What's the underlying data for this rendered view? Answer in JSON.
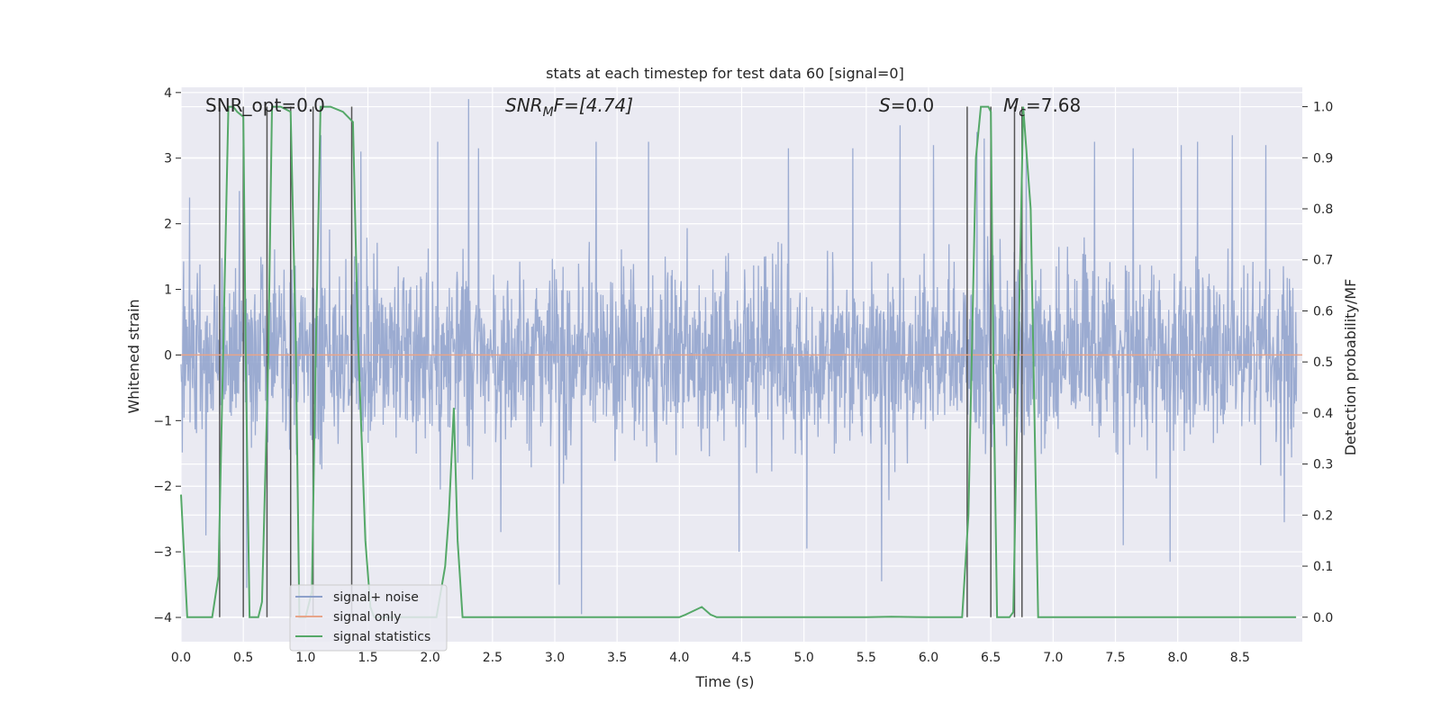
{
  "chart_data": {
    "type": "line",
    "title": "stats at each timestep for test data 60 [signal=0]",
    "xlabel": "Time (s)",
    "ylabel_left": "Whitened strain",
    "ylabel_right": "Detection probability/MF",
    "xlim": [
      0.0,
      9.0
    ],
    "ylim_left": [
      -4.37,
      4.08
    ],
    "ylim_right": [
      -0.048,
      1.038
    ],
    "x_ticks": [
      0.0,
      0.5,
      1.0,
      1.5,
      2.0,
      2.5,
      3.0,
      3.5,
      4.0,
      4.5,
      5.0,
      5.5,
      6.0,
      6.5,
      7.0,
      7.5,
      8.0,
      8.5
    ],
    "x_tick_labels": [
      "0.0",
      "0.5",
      "1.0",
      "1.5",
      "2.0",
      "2.5",
      "3.0",
      "3.5",
      "4.0",
      "4.5",
      "5.0",
      "5.5",
      "6.0",
      "6.5",
      "7.0",
      "7.5",
      "8.0",
      "8.5"
    ],
    "y_left_ticks": [
      4,
      3,
      2,
      1,
      0,
      -1,
      -2,
      -3,
      -4
    ],
    "y_left_tick_labels": [
      "4",
      "3",
      "2",
      "1",
      "0",
      "−1",
      "−2",
      "−3",
      "−4"
    ],
    "y_right_ticks": [
      1.0,
      0.9,
      0.8,
      0.7,
      0.6,
      0.5,
      0.4,
      0.3,
      0.2,
      0.1,
      0.0
    ],
    "y_right_tick_labels": [
      "1.0",
      "0.9",
      "0.8",
      "0.7",
      "0.6",
      "0.5",
      "0.4",
      "0.3",
      "0.2",
      "0.1",
      "0.0"
    ],
    "grid": true,
    "annotations": {
      "snr_opt": "SNR_opt=0.0",
      "snr_mf_main": "SNR",
      "snr_mf_sub": "M",
      "snr_mf_rest": "F=[4.74]",
      "s_main": "S",
      "s_rest": "=0.0",
      "mc_main": "M",
      "mc_sub": "c",
      "mc_rest": "=7.68"
    },
    "series": [
      {
        "name": "signal+ noise",
        "axis": "left",
        "color": "#8da0cb",
        "description_values": "whitened noise, roughly within [-2.6, 2.6] with peaks to ~3.8 and -4.0",
        "peaks": [
          [
            0.07,
            2.4
          ],
          [
            0.2,
            -2.75
          ],
          [
            0.47,
            2.5
          ],
          [
            0.53,
            -3.55
          ],
          [
            1.13,
            3.35
          ],
          [
            1.45,
            3.1
          ],
          [
            2.07,
            3.25
          ],
          [
            2.09,
            -2.05
          ],
          [
            2.32,
            3.9
          ],
          [
            2.4,
            3.15
          ],
          [
            2.58,
            -2.7
          ],
          [
            3.05,
            -3.5
          ],
          [
            3.23,
            -3.95
          ],
          [
            3.35,
            3.25
          ],
          [
            3.77,
            3.25
          ],
          [
            4.5,
            -3.0
          ],
          [
            4.9,
            3.15
          ],
          [
            5.05,
            -2.95
          ],
          [
            5.42,
            3.15
          ],
          [
            5.65,
            -3.45
          ],
          [
            5.8,
            3.5
          ],
          [
            6.07,
            3.2
          ],
          [
            6.42,
            3.4
          ],
          [
            6.48,
            3.3
          ],
          [
            6.82,
            3.1
          ],
          [
            7.37,
            3.25
          ],
          [
            7.6,
            -2.9
          ],
          [
            7.68,
            3.15
          ],
          [
            7.98,
            -3.15
          ],
          [
            8.07,
            3.2
          ],
          [
            8.2,
            3.25
          ],
          [
            8.48,
            3.35
          ],
          [
            8.75,
            3.2
          ],
          [
            8.9,
            -2.55
          ]
        ]
      },
      {
        "name": "signal only",
        "axis": "left",
        "color": "#e8a58a",
        "x": [
          0.0,
          9.0
        ],
        "y": [
          0.0,
          0.0
        ]
      },
      {
        "name": "signal statistics",
        "axis": "right",
        "color": "#55a868",
        "x": [
          0.0,
          0.05,
          0.12,
          0.25,
          0.3,
          0.38,
          0.42,
          0.45,
          0.5,
          0.52,
          0.55,
          0.58,
          0.62,
          0.65,
          0.7,
          0.73,
          0.75,
          0.8,
          0.88,
          0.92,
          0.95,
          1.0,
          1.05,
          1.08,
          1.12,
          1.15,
          1.2,
          1.3,
          1.38,
          1.42,
          1.48,
          1.52,
          1.55,
          1.6,
          1.7,
          1.8,
          1.9,
          2.0,
          2.05,
          2.12,
          2.15,
          2.19,
          2.22,
          2.26,
          2.3,
          2.5,
          3.0,
          3.5,
          4.0,
          4.05,
          4.18,
          4.25,
          4.3,
          4.6,
          5.0,
          5.5,
          5.7,
          6.0,
          6.27,
          6.32,
          6.38,
          6.42,
          6.48,
          6.5,
          6.52,
          6.55,
          6.6,
          6.65,
          6.68,
          6.72,
          6.76,
          6.82,
          6.88,
          6.95,
          7.5,
          8.0,
          8.5,
          8.95
        ],
        "y": [
          0.24,
          0.0,
          0.0,
          0.0,
          0.08,
          1.0,
          1.0,
          0.99,
          0.98,
          0.5,
          0.0,
          0.0,
          0.0,
          0.03,
          0.5,
          1.0,
          1.0,
          1.0,
          0.99,
          0.55,
          0.0,
          0.0,
          0.05,
          0.5,
          1.0,
          1.0,
          1.0,
          0.99,
          0.97,
          0.55,
          0.15,
          0.02,
          0.0,
          0.0,
          0.0,
          0.0,
          0.0,
          0.0,
          0.0,
          0.1,
          0.2,
          0.41,
          0.15,
          0.0,
          0.0,
          0.0,
          0.0,
          0.0,
          0.0,
          0.005,
          0.02,
          0.005,
          0.0,
          0.0,
          0.0,
          0.0,
          0.001,
          0.0,
          0.0,
          0.2,
          0.9,
          1.0,
          1.0,
          0.99,
          0.5,
          0.0,
          0.0,
          0.0,
          0.01,
          0.5,
          1.0,
          0.8,
          0.0,
          0.0,
          0.0,
          0.0,
          0.0,
          0.0
        ]
      }
    ],
    "vertical_markers": [
      0.31,
      0.5,
      0.69,
      0.88,
      1.06,
      1.37,
      6.31,
      6.5,
      6.69,
      6.75
    ],
    "legend": {
      "placement": "lower-left",
      "entries": [
        "signal+ noise",
        "signal only",
        "signal statistics"
      ]
    },
    "colors": {
      "plot_background": "#eaeaf2",
      "grid": "#ffffff",
      "marker_lines": "#555555",
      "text": "#262626"
    }
  }
}
